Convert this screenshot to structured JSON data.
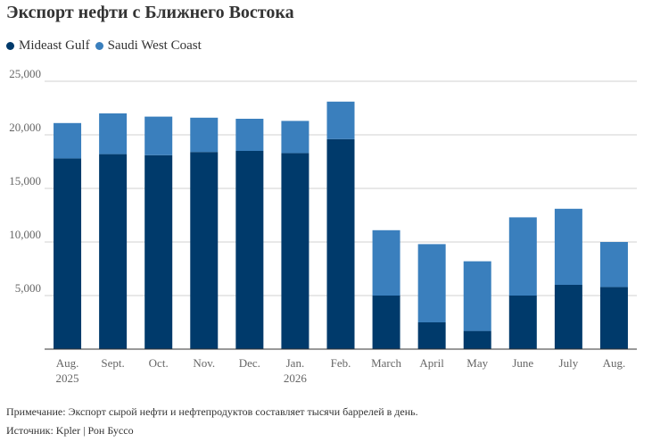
{
  "chart_data": {
    "type": "bar",
    "stacked": true,
    "title": "Экспорт нефти с Ближнего Востока",
    "categories": [
      [
        "Aug.",
        "2025"
      ],
      [
        "Sept."
      ],
      [
        "Oct."
      ],
      [
        "Nov."
      ],
      [
        "Dec."
      ],
      [
        "Jan.",
        "2026"
      ],
      [
        "Feb."
      ],
      [
        "March"
      ],
      [
        "April"
      ],
      [
        "May"
      ],
      [
        "June"
      ],
      [
        "July"
      ],
      [
        "Aug."
      ]
    ],
    "series": [
      {
        "name": "Mideast Gulf",
        "color": "#003a6b",
        "values": [
          17800,
          18200,
          18100,
          18400,
          18500,
          18300,
          19600,
          5000,
          2500,
          1700,
          5000,
          6000,
          5800
        ]
      },
      {
        "name": "Saudi West Coast",
        "color": "#3a7fbd",
        "values": [
          3300,
          3800,
          3600,
          3200,
          3000,
          3000,
          3500,
          6100,
          7300,
          6500,
          7300,
          7100,
          4200
        ]
      }
    ],
    "ylim": [
      0,
      25000
    ],
    "yticks": [
      5000,
      10000,
      15000,
      20000,
      25000
    ],
    "ytick_labels": [
      "5,000",
      "10,000",
      "15,000",
      "20,000",
      "25,000"
    ],
    "xlabel": "",
    "ylabel": "",
    "grid": true,
    "legend_position": "top-left"
  },
  "notes": {
    "note": "Примечание: Экспорт сырой нефти и нефтепродуктов составляет тысячи баррелей в день.",
    "source": "Источник: Kpler | Рон Буссо"
  }
}
